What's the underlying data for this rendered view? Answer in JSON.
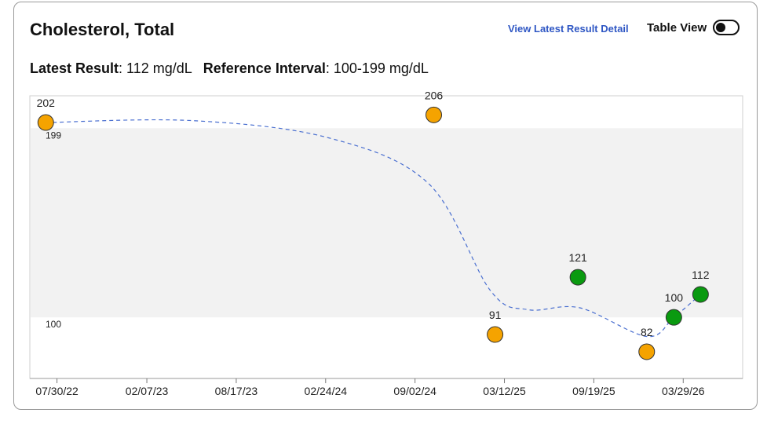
{
  "header": {
    "title": "Cholesterol, Total",
    "detail_link": "View Latest Result Detail",
    "table_view_label": "Table View"
  },
  "summary": {
    "latest_label": "Latest Result",
    "latest_value": ": 112 mg/dL",
    "reference_label": "Reference Interval",
    "reference_value": ": 100-199 mg/dL"
  },
  "colors": {
    "out_of_range": "#f5a300",
    "in_range": "#0a9a10",
    "trend_line": "#4a6fd0",
    "reference_band": "#f2f2f2"
  },
  "chart_data": {
    "type": "scatter",
    "title": "",
    "xlabel": "",
    "ylabel": "",
    "ylim": [
      68,
      216
    ],
    "reference_interval": {
      "low": 100,
      "high": 199,
      "low_label": "100",
      "high_label": "199"
    },
    "x_ticks": [
      "2022-07-30",
      "2023-02-07",
      "2023-08-17",
      "2024-02-24",
      "2024-09-02",
      "2025-03-12",
      "2025-09-19",
      "2026-03-29"
    ],
    "x_tick_labels": [
      "07/30/22",
      "02/07/23",
      "08/17/23",
      "02/24/24",
      "09/02/24",
      "03/12/25",
      "09/19/25",
      "03/29/26"
    ],
    "x_range": [
      "2022-06-02",
      "2026-08-03"
    ],
    "points": [
      {
        "x": "2022-07-06",
        "y": 202,
        "label": "202",
        "status": "out_of_range"
      },
      {
        "x": "2024-10-12",
        "y": 206,
        "label": "206",
        "status": "out_of_range"
      },
      {
        "x": "2025-02-20",
        "y": 91,
        "label": "91",
        "status": "out_of_range"
      },
      {
        "x": "2025-08-16",
        "y": 121,
        "label": "121",
        "status": "in_range"
      },
      {
        "x": "2026-01-10",
        "y": 82,
        "label": "82",
        "status": "out_of_range"
      },
      {
        "x": "2026-03-09",
        "y": 100,
        "label": "100",
        "status": "in_range"
      },
      {
        "x": "2026-05-05",
        "y": 112,
        "label": "112",
        "status": "in_range"
      }
    ],
    "trend_line": [
      {
        "x": "2022-07-06",
        "y": 202
      },
      {
        "x": "2023-05-15",
        "y": 203
      },
      {
        "x": "2024-03-01",
        "y": 194
      },
      {
        "x": "2024-10-01",
        "y": 170
      },
      {
        "x": "2025-02-10",
        "y": 114
      },
      {
        "x": "2025-05-01",
        "y": 104
      },
      {
        "x": "2025-08-20",
        "y": 105
      },
      {
        "x": "2026-01-10",
        "y": 90
      },
      {
        "x": "2026-03-09",
        "y": 100
      },
      {
        "x": "2026-05-05",
        "y": 112
      }
    ],
    "grid": false
  }
}
